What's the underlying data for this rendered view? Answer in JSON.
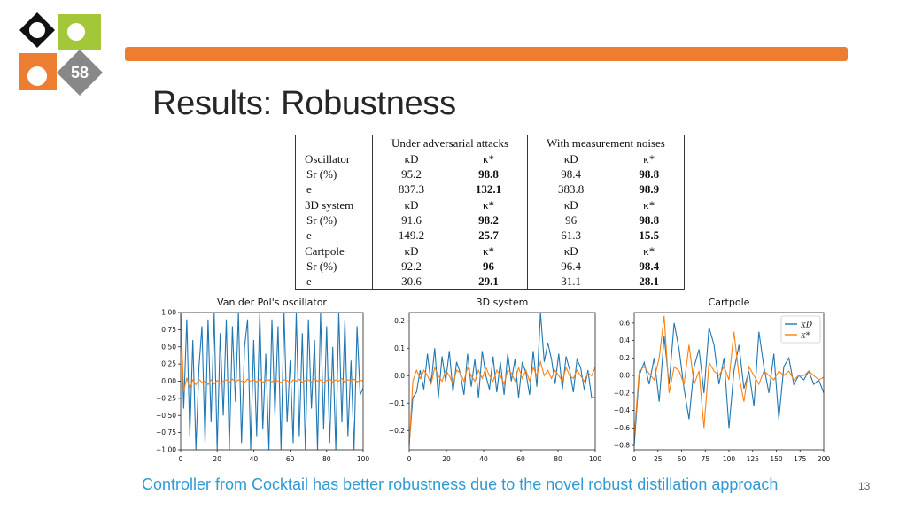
{
  "slide": {
    "title": "Results: Robustness",
    "caption": "Controller from Cocktail has better robustness due to the novel robust distillation approach",
    "page_number": "13",
    "logo_text": "58"
  },
  "table": {
    "header": [
      "Under adversarial attacks",
      "With measurement noises"
    ],
    "groups": [
      {
        "system": "Oscillator",
        "cols": [
          "κD",
          "κ*",
          "κD",
          "κ*"
        ],
        "rows": [
          {
            "label": "Sr (%)",
            "values": [
              "95.2",
              "98.8",
              "98.4",
              "98.8"
            ]
          },
          {
            "label": "e",
            "values": [
              "837.3",
              "132.1",
              "383.8",
              "98.9"
            ]
          }
        ]
      },
      {
        "system": "3D system",
        "cols": [
          "κD",
          "κ*",
          "κD",
          "κ*"
        ],
        "rows": [
          {
            "label": "Sr (%)",
            "values": [
              "91.6",
              "98.2",
              "96",
              "98.8"
            ]
          },
          {
            "label": "e",
            "values": [
              "149.2",
              "25.7",
              "61.3",
              "15.5"
            ]
          }
        ]
      },
      {
        "system": "Cartpole",
        "cols": [
          "κD",
          "κ*",
          "κD",
          "κ*"
        ],
        "rows": [
          {
            "label": "Sr (%)",
            "values": [
              "92.2",
              "96",
              "96.4",
              "98.4"
            ]
          },
          {
            "label": "e",
            "values": [
              "30.6",
              "29.1",
              "31.1",
              "28.1"
            ]
          }
        ]
      }
    ]
  },
  "chart_data": [
    {
      "type": "line",
      "title": "Van der Pol's oscillator",
      "xlim": [
        0,
        100
      ],
      "ylim": [
        -1.0,
        1.0
      ],
      "xticks": [
        "0",
        "20",
        "40",
        "60",
        "80",
        "100"
      ],
      "yticks": [
        "1.00",
        "0.75",
        "0.50",
        "0.25",
        "0.00",
        "−0.25",
        "−0.50",
        "−0.75",
        "−1.00"
      ],
      "series": [
        {
          "color": "#1f77b4",
          "y": [
            1.0,
            -0.4,
            0.9,
            -0.8,
            0.6,
            -1.0,
            0.2,
            0.8,
            -0.9,
            0.9,
            -0.6,
            1.0,
            -1.0,
            0.7,
            -0.5,
            0.9,
            -1.0,
            0.8,
            -0.3,
            1.0,
            -0.9,
            0.5,
            0.9,
            -1.0,
            0.6,
            -0.8,
            1.0,
            -0.7,
            0.4,
            -1.0,
            0.9,
            -0.5,
            0.8,
            -1.0,
            1.0,
            -0.6,
            0.3,
            -0.9,
            1.0,
            -0.8,
            0.7,
            -1.0,
            0.9,
            -0.4,
            0.6,
            -1.0,
            1.0,
            -0.7,
            0.8,
            -0.9,
            0.5,
            -1.0,
            1.0,
            -0.6,
            0.9,
            -0.8,
            0.3,
            -1.0,
            0.8,
            -0.2,
            -0.1
          ]
        },
        {
          "color": "#ff7f0e",
          "y": [
            1.0,
            -0.15,
            0.05,
            -0.1,
            0.02,
            -0.05,
            0.03,
            -0.02,
            0.0,
            -0.05,
            0.02,
            -0.04,
            0.01,
            -0.03,
            0.0,
            0.02,
            -0.02,
            0.03,
            -0.01,
            0.02,
            0.0,
            -0.02,
            0.03,
            0.0,
            0.02,
            -0.01,
            0.03,
            -0.02,
            0.01,
            0.02,
            -0.01,
            0.03,
            0.0,
            -0.02,
            0.02,
            0.01,
            -0.03,
            0.02,
            0.0,
            0.03,
            -0.02,
            0.01,
            0.02,
            -0.01,
            0.03,
            0.0,
            0.02,
            -0.02,
            0.01,
            0.03,
            -0.01,
            0.02,
            0.0,
            0.04,
            -0.02,
            0.02,
            0.01,
            0.03,
            -0.01,
            0.02,
            0.0
          ]
        }
      ]
    },
    {
      "type": "line",
      "title": "3D system",
      "xlim": [
        0,
        100
      ],
      "ylim": [
        -0.27,
        0.23
      ],
      "xticks": [
        "0",
        "20",
        "40",
        "60",
        "80",
        "100"
      ],
      "yticks": [
        "0.2",
        "0.1",
        "0.0",
        "−0.1",
        "−0.2"
      ],
      "series": [
        {
          "color": "#1f77b4",
          "y": [
            -0.25,
            -0.08,
            -0.06,
            0.02,
            -0.05,
            0.08,
            -0.03,
            0.1,
            -0.08,
            0.07,
            -0.02,
            0.09,
            -0.06,
            0.05,
            0.01,
            -0.07,
            0.08,
            -0.04,
            0.06,
            -0.08,
            0.09,
            0.0,
            -0.05,
            0.07,
            -0.06,
            0.05,
            -0.07,
            0.08,
            -0.02,
            0.06,
            -0.08,
            0.05,
            0.01,
            -0.07,
            0.09,
            -0.04,
            0.23,
            0.05,
            0.12,
            0.06,
            -0.03,
            0.08,
            -0.05,
            0.07,
            0.02,
            -0.06,
            0.06,
            0.03,
            -0.05,
            0.02,
            -0.08,
            -0.08
          ]
        },
        {
          "color": "#ff7f0e",
          "y": [
            -0.26,
            -0.02,
            0.02,
            -0.01,
            0.02,
            0.0,
            -0.03,
            0.03,
            0.0,
            -0.02,
            0.02,
            0.0,
            -0.03,
            0.02,
            0.01,
            -0.02,
            0.03,
            0.0,
            -0.02,
            0.02,
            -0.01,
            0.03,
            0.0,
            -0.02,
            0.02,
            0.0,
            -0.03,
            0.02,
            0.01,
            -0.02,
            0.03,
            -0.01,
            0.02,
            -0.02,
            0.03,
            0.0,
            0.05,
            0.0,
            0.02,
            -0.01,
            0.02,
            0.0,
            -0.02,
            0.03,
            0.0,
            -0.01,
            0.02,
            0.0,
            -0.02,
            0.01,
            0.0,
            0.03
          ]
        }
      ]
    },
    {
      "type": "line",
      "title": "Cartpole",
      "xlim": [
        0,
        200
      ],
      "ylim": [
        -0.85,
        0.72
      ],
      "xticks": [
        "0",
        "25",
        "50",
        "75",
        "100",
        "125",
        "150",
        "175",
        "200"
      ],
      "yticks": [
        "0.6",
        "0.4",
        "0.2",
        "0.0",
        "−0.2",
        "−0.4",
        "−0.6",
        "−0.8"
      ],
      "legend": [
        "κD",
        "κ*"
      ],
      "legend_position": "top-right",
      "series": [
        {
          "name": "κD",
          "color": "#1f77b4",
          "y": [
            -0.8,
            0.0,
            0.15,
            -0.1,
            0.2,
            -0.3,
            0.45,
            -0.1,
            0.6,
            0.3,
            -0.15,
            -0.5,
            0.1,
            0.3,
            -0.2,
            0.55,
            0.35,
            -0.1,
            0.2,
            -0.6,
            0.05,
            0.35,
            -0.15,
            0.05,
            -0.35,
            0.5,
            0.1,
            -0.2,
            0.25,
            -0.5,
            0.1,
            0.2,
            -0.1,
            0.0,
            -0.05,
            0.05,
            -0.1,
            -0.05,
            -0.2
          ]
        },
        {
          "name": "κ*",
          "color": "#ff7f0e",
          "y": [
            -0.7,
            0.05,
            0.1,
            0.02,
            -0.05,
            0.2,
            0.68,
            -0.2,
            0.1,
            0.05,
            -0.1,
            0.35,
            -0.1,
            0.05,
            -0.6,
            0.15,
            0.05,
            0.0,
            0.1,
            -0.05,
            0.5,
            0.0,
            -0.3,
            0.1,
            0.0,
            -0.1,
            0.05,
            0.0,
            -0.05,
            0.05,
            0.0,
            0.05,
            -0.05,
            0.0,
            0.0,
            0.05,
            0.0,
            -0.05,
            -0.02
          ]
        }
      ]
    }
  ]
}
